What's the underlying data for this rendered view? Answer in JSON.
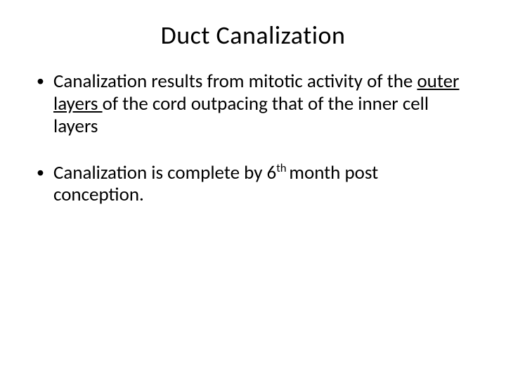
{
  "slide": {
    "title": "Duct Canalization",
    "title_fontsize": 36,
    "body_fontsize": 27,
    "background_color": "#ffffff",
    "text_color": "#000000",
    "bullets": [
      {
        "pre": "Canalization results from mitotic activity  of the ",
        "underlined": "outer layers ",
        "post": "of the cord outpacing that of the inner cell layers"
      },
      {
        "pre": "Canalization is complete by 6",
        "sup": "th ",
        "post": "month post conception."
      }
    ]
  }
}
